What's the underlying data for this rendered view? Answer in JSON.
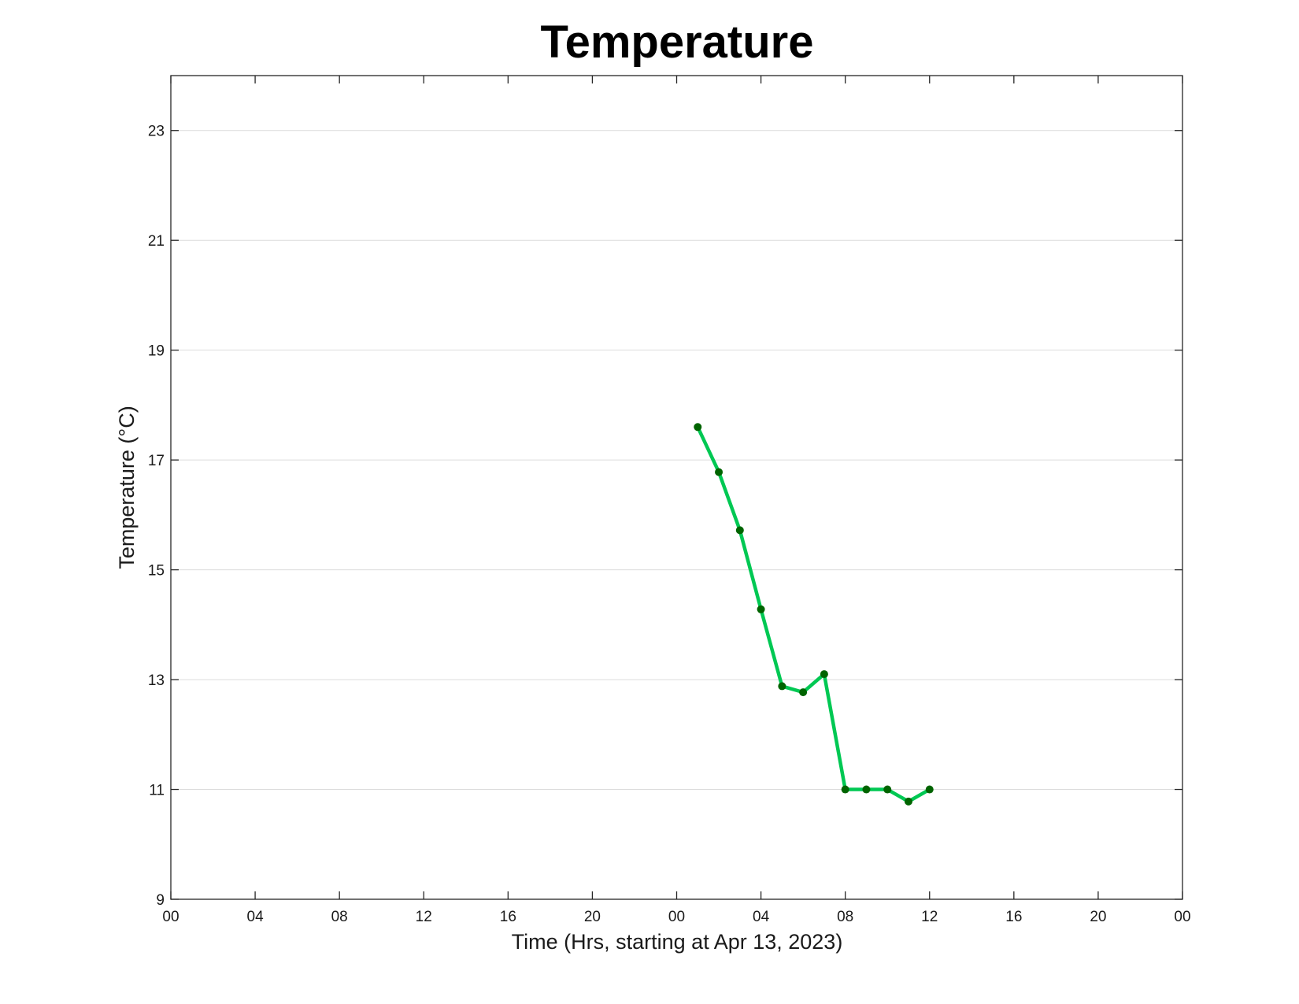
{
  "chart_data": {
    "type": "line",
    "title": "Temperature",
    "xlabel": "Time (Hrs, starting at Apr 13, 2023)",
    "ylabel": "Temperature (°C)",
    "x_unit": "hours",
    "xlim": [
      0,
      48
    ],
    "ylim": [
      9,
      24
    ],
    "x_ticks": [
      0,
      4,
      8,
      12,
      16,
      20,
      24,
      28,
      32,
      36,
      40,
      44,
      48
    ],
    "x_tick_labels": [
      "00",
      "04",
      "08",
      "12",
      "16",
      "20",
      "00",
      "04",
      "08",
      "12",
      "16",
      "20",
      "00"
    ],
    "y_ticks": [
      9,
      11,
      13,
      15,
      17,
      19,
      21,
      23
    ],
    "y_tick_labels": [
      "9",
      "11",
      "13",
      "15",
      "17",
      "19",
      "21",
      "23"
    ],
    "grid": "horizontal",
    "line_color": "#00c853",
    "marker_color": "#006400",
    "series": [
      {
        "x": [
          25,
          26,
          27,
          28,
          29,
          30,
          31,
          32,
          33,
          34,
          35,
          36
        ],
        "values": [
          17.6,
          16.78,
          15.72,
          14.28,
          12.88,
          12.77,
          13.1,
          11.0,
          11.0,
          11.0,
          10.78,
          11.0
        ]
      }
    ]
  }
}
